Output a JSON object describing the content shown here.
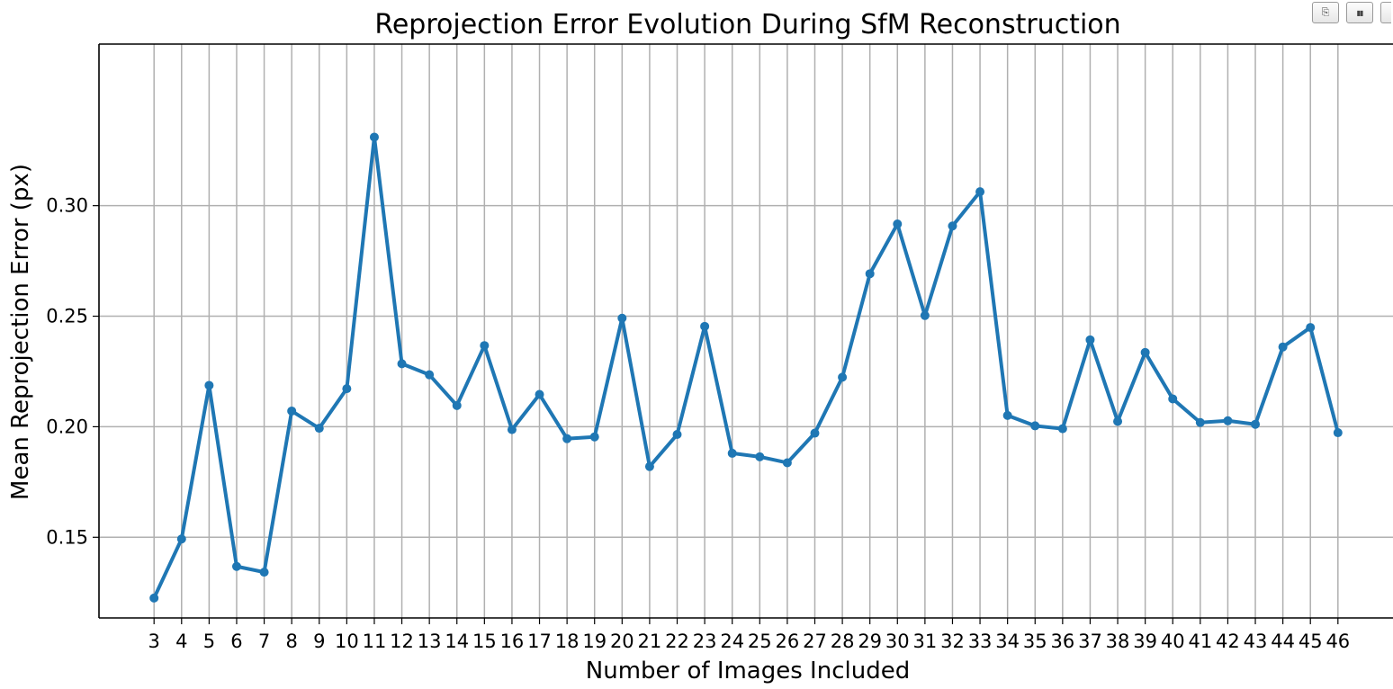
{
  "toolbar": {
    "buttons": [
      {
        "icon": "copy-icon",
        "glyph": "⎘"
      },
      {
        "icon": "chart-icon",
        "glyph": "▮▮"
      },
      {
        "icon": "more-icon",
        "glyph": ""
      }
    ]
  },
  "chart_data": {
    "type": "line",
    "title": "Reprojection Error Evolution During SfM Reconstruction",
    "xlabel": "Number of Images Included",
    "ylabel": "Mean Reprojection Error (px)",
    "x": [
      3,
      4,
      5,
      6,
      7,
      8,
      9,
      10,
      11,
      12,
      13,
      14,
      15,
      16,
      17,
      18,
      19,
      20,
      21,
      22,
      23,
      24,
      25,
      26,
      27,
      28,
      29,
      30,
      31,
      32,
      33,
      34,
      35,
      36,
      37,
      38,
      39,
      40,
      41,
      42,
      43,
      44,
      45,
      46
    ],
    "series": [
      {
        "values": [
          0.1225,
          0.1492,
          0.2187,
          0.1368,
          0.1342,
          0.2071,
          0.1993,
          0.2172,
          0.331,
          0.2285,
          0.2235,
          0.2096,
          0.2367,
          0.1987,
          0.2146,
          0.1946,
          0.1954,
          0.2491,
          0.182,
          0.1965,
          0.2454,
          0.188,
          0.1864,
          0.1837,
          0.1971,
          0.2224,
          0.2692,
          0.2917,
          0.2503,
          0.2908,
          0.3063,
          0.2051,
          0.2004,
          0.1991,
          0.2393,
          0.2024,
          0.2336,
          0.2126,
          0.2019,
          0.2027,
          0.2011,
          0.2361,
          0.2449,
          0.1973
        ],
        "color": "#1f77b4"
      }
    ],
    "yticks": [
      0.15,
      0.2,
      0.25,
      0.3
    ],
    "ytick_labels": [
      "0.15",
      "0.20",
      "0.25",
      "0.30"
    ],
    "xlim": [
      1.0,
      48.0
    ],
    "ylim": [
      0.1135,
      0.3731
    ],
    "grid": true,
    "line_color": "#1f77b4",
    "grid_color": "#b0b0b0"
  }
}
